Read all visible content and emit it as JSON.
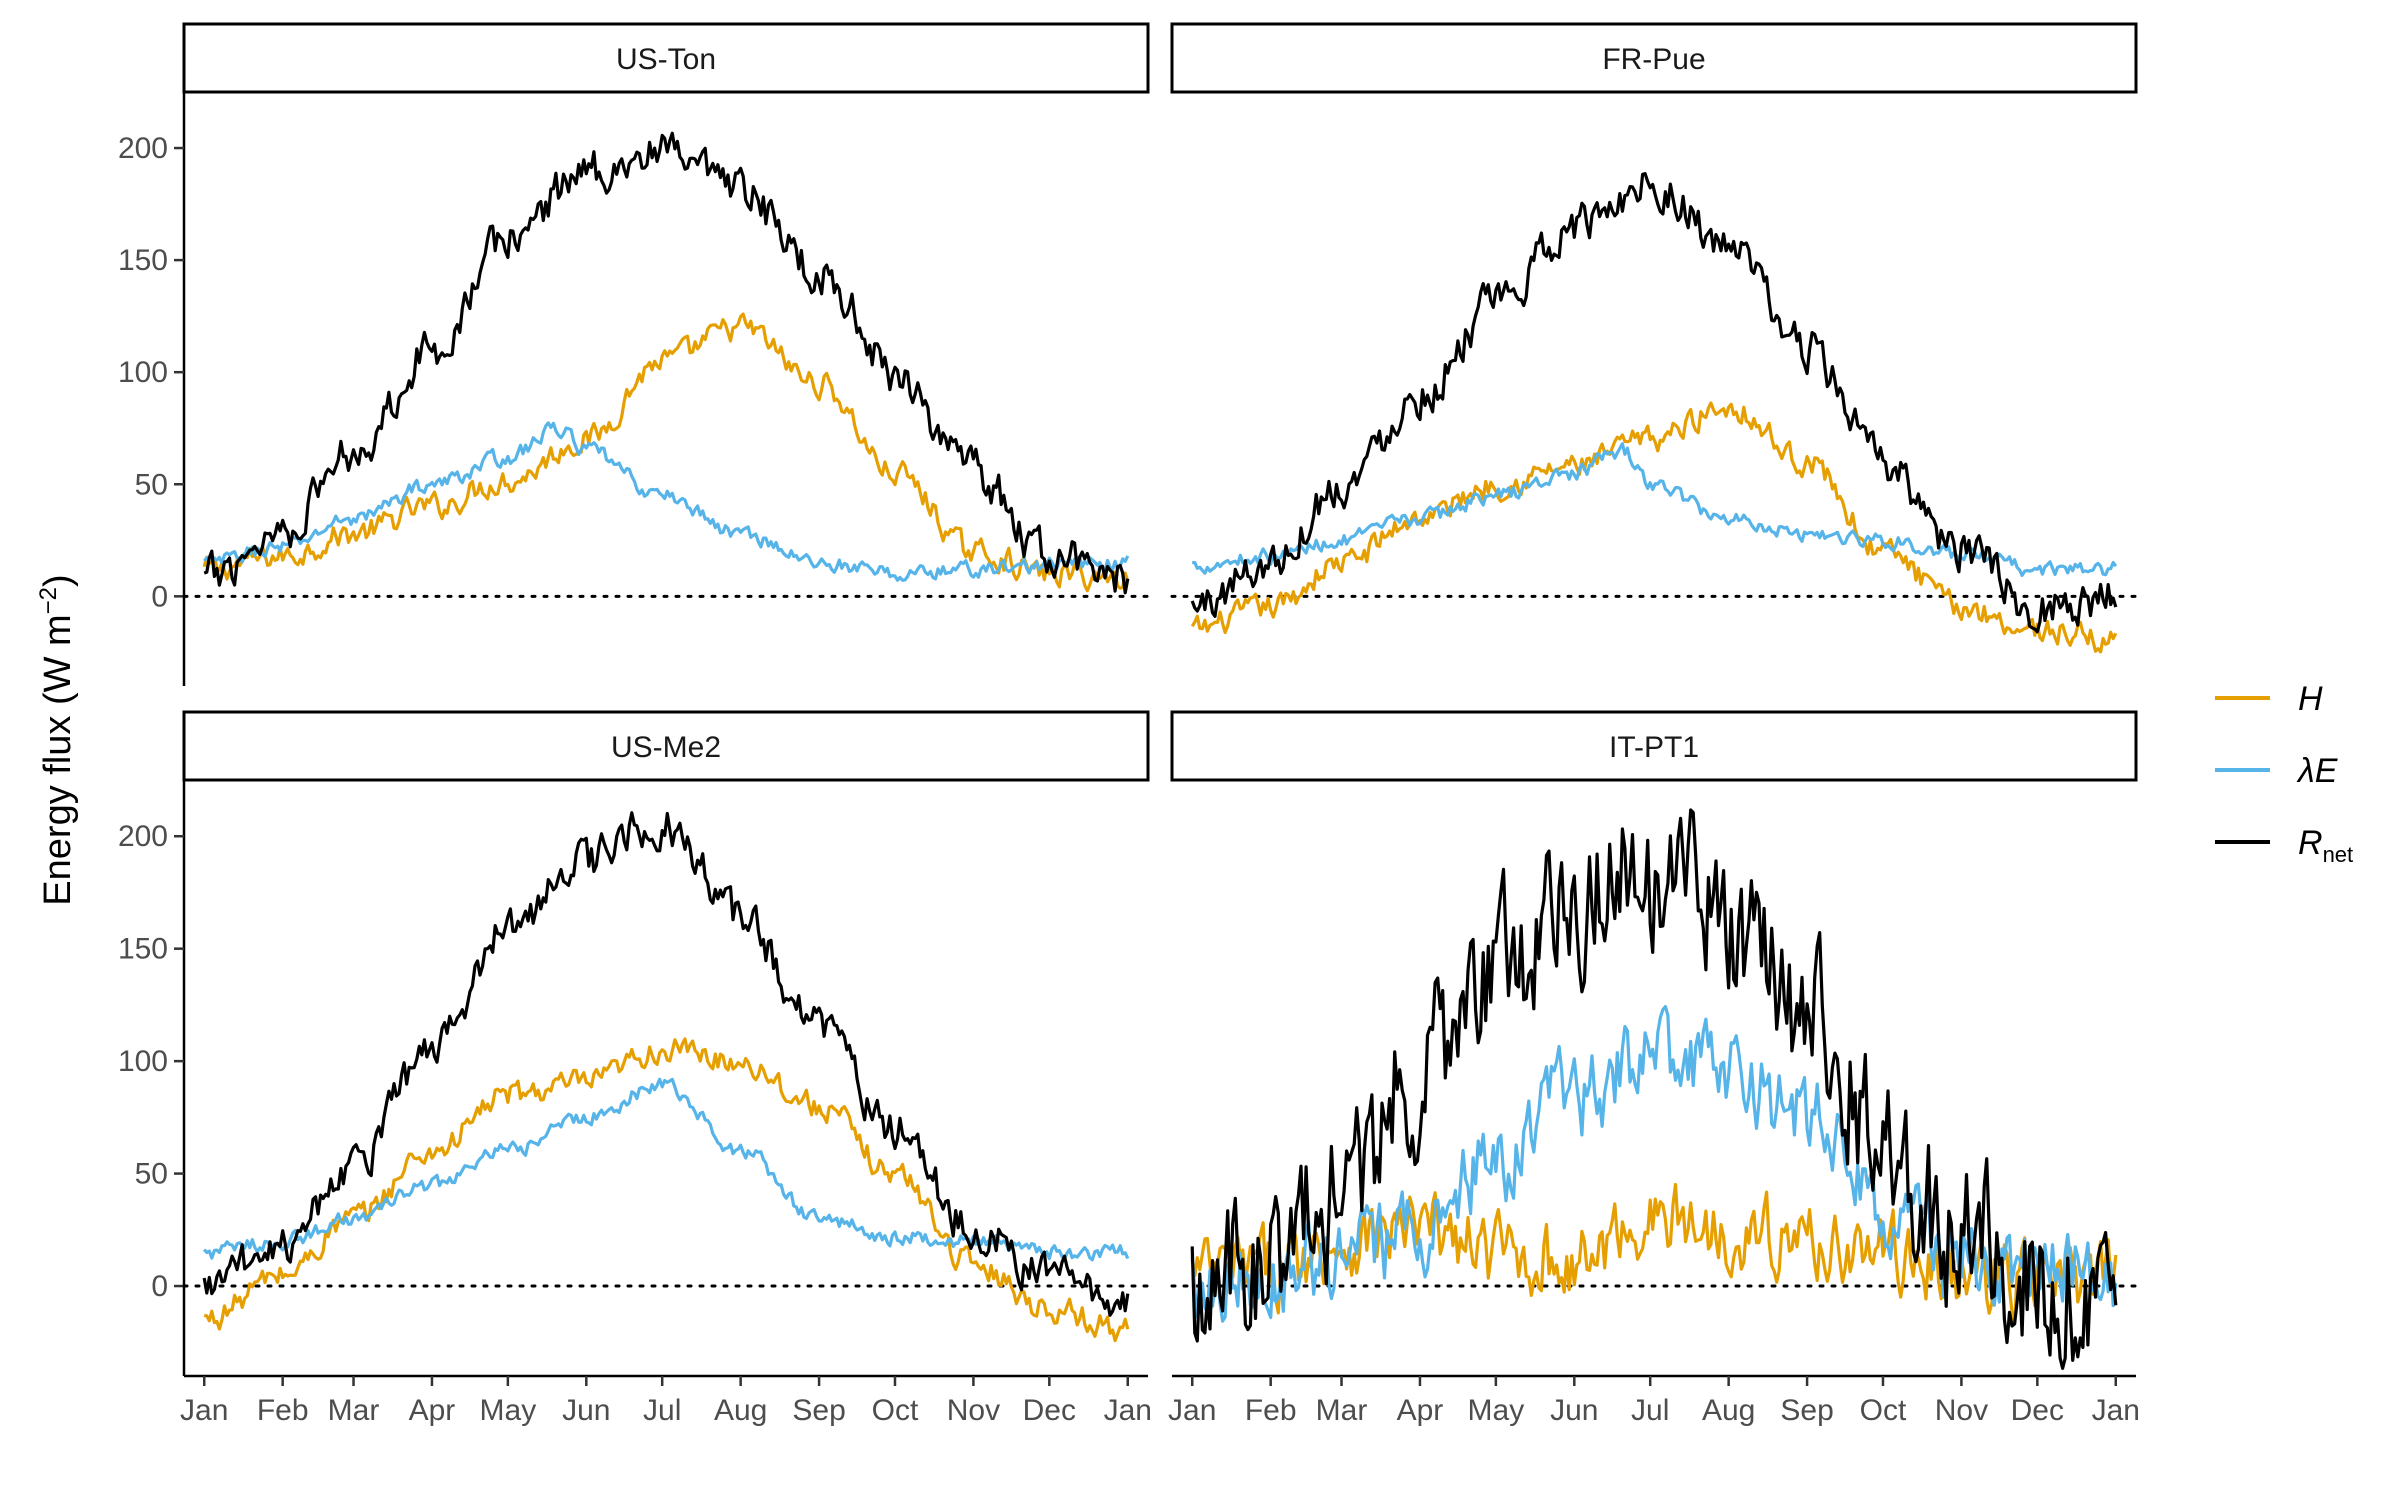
{
  "chart_data": {
    "type": "line",
    "ylabel": "Energy flux (W m",
    "ylabel_exp": "−2",
    "ylabel_close": ")",
    "xticks": [
      "Jan",
      "Feb",
      "Mar",
      "Apr",
      "May",
      "Jun",
      "Jul",
      "Aug",
      "Sep",
      "Oct",
      "Nov",
      "Dec",
      "Jan"
    ],
    "yticks": [
      0,
      50,
      100,
      150,
      200
    ],
    "ylim": [
      -40,
      225
    ],
    "xlim_days": [
      -8,
      373
    ],
    "reference_line": 0,
    "legend": {
      "placement": "right",
      "entries": [
        {
          "label": "H",
          "sub": "",
          "color": "#E69F00"
        },
        {
          "label": "λE",
          "sub": "",
          "color": "#56B4E9"
        },
        {
          "label": "R",
          "sub": "net",
          "color": "#000000"
        }
      ]
    },
    "panels": [
      {
        "title": "US-Ton",
        "series": {
          "H": [
            [
              0,
              12
            ],
            [
              31,
              18
            ],
            [
              59,
              28
            ],
            [
              90,
              40
            ],
            [
              120,
              52
            ],
            [
              151,
              70
            ],
            [
              181,
              105
            ],
            [
              212,
              120
            ],
            [
              243,
              95
            ],
            [
              273,
              55
            ],
            [
              304,
              20
            ],
            [
              334,
              10
            ],
            [
              365,
              8
            ]
          ],
          "LE": [
            [
              0,
              15
            ],
            [
              31,
              22
            ],
            [
              59,
              35
            ],
            [
              90,
              50
            ],
            [
              120,
              62
            ],
            [
              140,
              75
            ],
            [
              151,
              65
            ],
            [
              181,
              45
            ],
            [
              212,
              28
            ],
            [
              243,
              15
            ],
            [
              273,
              10
            ],
            [
              304,
              12
            ],
            [
              334,
              14
            ],
            [
              365,
              15
            ]
          ],
          "Rnet": [
            [
              0,
              8
            ],
            [
              31,
              30
            ],
            [
              59,
              65
            ],
            [
              90,
              110
            ],
            [
              120,
              160
            ],
            [
              151,
              190
            ],
            [
              181,
              197
            ],
            [
              212,
              180
            ],
            [
              243,
              145
            ],
            [
              273,
              100
            ],
            [
              304,
              55
            ],
            [
              334,
              18
            ],
            [
              365,
              8
            ]
          ]
        }
      },
      {
        "title": "FR-Pue",
        "series": {
          "H": [
            [
              0,
              -15
            ],
            [
              31,
              -5
            ],
            [
              59,
              15
            ],
            [
              90,
              35
            ],
            [
              120,
              50
            ],
            [
              151,
              58
            ],
            [
              181,
              70
            ],
            [
              212,
              85
            ],
            [
              243,
              60
            ],
            [
              273,
              20
            ],
            [
              304,
              -5
            ],
            [
              334,
              -15
            ],
            [
              365,
              -20
            ]
          ],
          "LE": [
            [
              0,
              14
            ],
            [
              31,
              18
            ],
            [
              59,
              25
            ],
            [
              90,
              35
            ],
            [
              120,
              45
            ],
            [
              151,
              55
            ],
            [
              170,
              65
            ],
            [
              181,
              50
            ],
            [
              212,
              35
            ],
            [
              243,
              28
            ],
            [
              273,
              25
            ],
            [
              304,
              18
            ],
            [
              334,
              12
            ],
            [
              365,
              12
            ]
          ],
          "Rnet": [
            [
              0,
              -5
            ],
            [
              31,
              15
            ],
            [
              59,
              50
            ],
            [
              90,
              90
            ],
            [
              120,
              130
            ],
            [
              151,
              165
            ],
            [
              181,
              185
            ],
            [
              212,
              155
            ],
            [
              243,
              110
            ],
            [
              273,
              60
            ],
            [
              304,
              20
            ],
            [
              334,
              -5
            ],
            [
              365,
              0
            ]
          ]
        }
      },
      {
        "title": "US-Me2",
        "series": {
          "H": [
            [
              0,
              -15
            ],
            [
              31,
              5
            ],
            [
              59,
              30
            ],
            [
              90,
              60
            ],
            [
              120,
              85
            ],
            [
              151,
              90
            ],
            [
              181,
              105
            ],
            [
              212,
              100
            ],
            [
              243,
              80
            ],
            [
              273,
              50
            ],
            [
              304,
              10
            ],
            [
              334,
              -10
            ],
            [
              365,
              -20
            ]
          ],
          "LE": [
            [
              0,
              15
            ],
            [
              31,
              20
            ],
            [
              59,
              30
            ],
            [
              90,
              45
            ],
            [
              120,
              60
            ],
            [
              151,
              75
            ],
            [
              181,
              90
            ],
            [
              212,
              60
            ],
            [
              243,
              30
            ],
            [
              273,
              22
            ],
            [
              304,
              20
            ],
            [
              334,
              15
            ],
            [
              365,
              15
            ]
          ],
          "Rnet": [
            [
              0,
              0
            ],
            [
              31,
              20
            ],
            [
              59,
              55
            ],
            [
              90,
              105
            ],
            [
              120,
              160
            ],
            [
              151,
              190
            ],
            [
              181,
              205
            ],
            [
              212,
              165
            ],
            [
              243,
              115
            ],
            [
              273,
              70
            ],
            [
              304,
              25
            ],
            [
              334,
              5
            ],
            [
              365,
              -5
            ]
          ]
        }
      },
      {
        "title": "IT-PT1",
        "series": {
          "H": [
            [
              0,
              5
            ],
            [
              31,
              8
            ],
            [
              59,
              20
            ],
            [
              90,
              25
            ],
            [
              120,
              15
            ],
            [
              151,
              10
            ],
            [
              181,
              30
            ],
            [
              212,
              25
            ],
            [
              243,
              20
            ],
            [
              273,
              15
            ],
            [
              304,
              5
            ],
            [
              334,
              2
            ],
            [
              365,
              3
            ]
          ],
          "LE": [
            [
              0,
              5
            ],
            [
              31,
              7
            ],
            [
              59,
              10
            ],
            [
              90,
              25
            ],
            [
              120,
              55
            ],
            [
              151,
              85
            ],
            [
              181,
              100
            ],
            [
              212,
              95
            ],
            [
              243,
              75
            ],
            [
              273,
              35
            ],
            [
              304,
              10
            ],
            [
              334,
              5
            ],
            [
              365,
              3
            ]
          ],
          "Rnet": [
            [
              0,
              2
            ],
            [
              31,
              10
            ],
            [
              59,
              45
            ],
            [
              90,
              95
            ],
            [
              120,
              140
            ],
            [
              151,
              175
            ],
            [
              181,
              185
            ],
            [
              212,
              160
            ],
            [
              243,
              120
            ],
            [
              273,
              65
            ],
            [
              304,
              20
            ],
            [
              334,
              5
            ],
            [
              365,
              0
            ]
          ]
        }
      }
    ]
  }
}
